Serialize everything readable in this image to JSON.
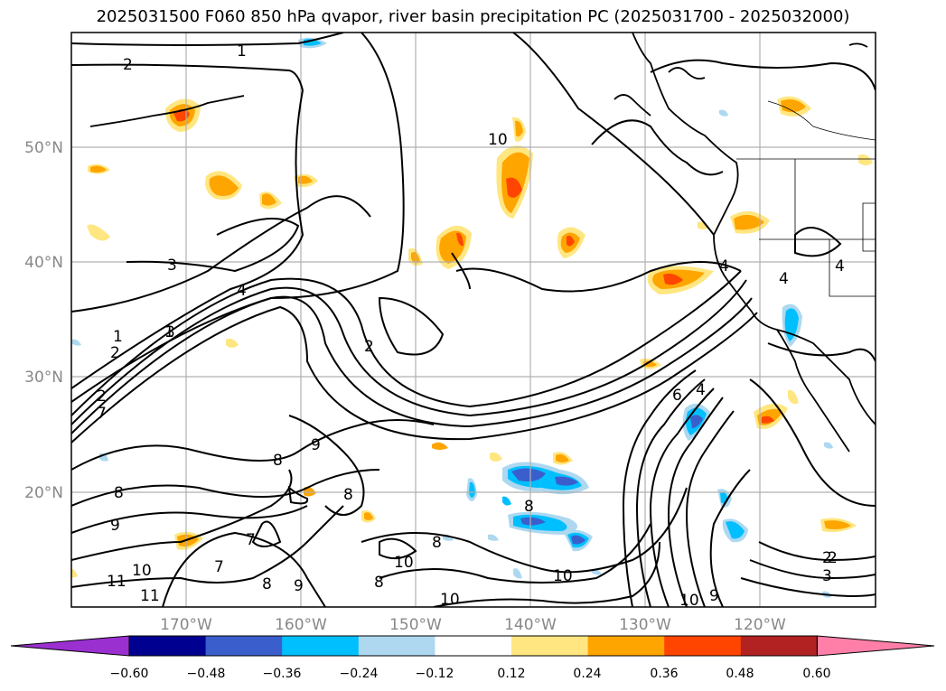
{
  "title": "2025031500 F060 850 hPa qvapor, river basin precipitation PC (2025031700 - 2025032000)",
  "lat_labels": [
    "50°N",
    "40°N",
    "30°N",
    "20°N"
  ],
  "lon_labels": [
    "170°W",
    "160°W",
    "150°W",
    "140°W",
    "130°W",
    "120°W"
  ],
  "colorbar": {
    "ticks": [
      "−0.60",
      "−0.48",
      "−0.36",
      "−0.24",
      "−0.12",
      "0.12",
      "0.24",
      "0.36",
      "0.48",
      "0.60"
    ],
    "colors": [
      "#9b30d0",
      "#000090",
      "#3a5fcd",
      "#00bfff",
      "#add8f0",
      "#ffffff",
      "#ffe680",
      "#ffa500",
      "#ff4500",
      "#b22222",
      "#ff7fa8"
    ]
  },
  "contour_labels": [
    "1",
    "2",
    "1",
    "2",
    "3",
    "4",
    "1",
    "2",
    "3",
    "2",
    "2",
    "7",
    "8",
    "9",
    "8",
    "9",
    "7",
    "7",
    "8",
    "8",
    "10",
    "11",
    "11",
    "10",
    "8",
    "9",
    "8",
    "8",
    "10",
    "10",
    "10",
    "9",
    "6",
    "4",
    "4",
    "4",
    "4",
    "2",
    "3",
    "10"
  ],
  "colors": {
    "land_line": "#000000",
    "grid": "#b0b0b0",
    "frame": "#000000"
  }
}
